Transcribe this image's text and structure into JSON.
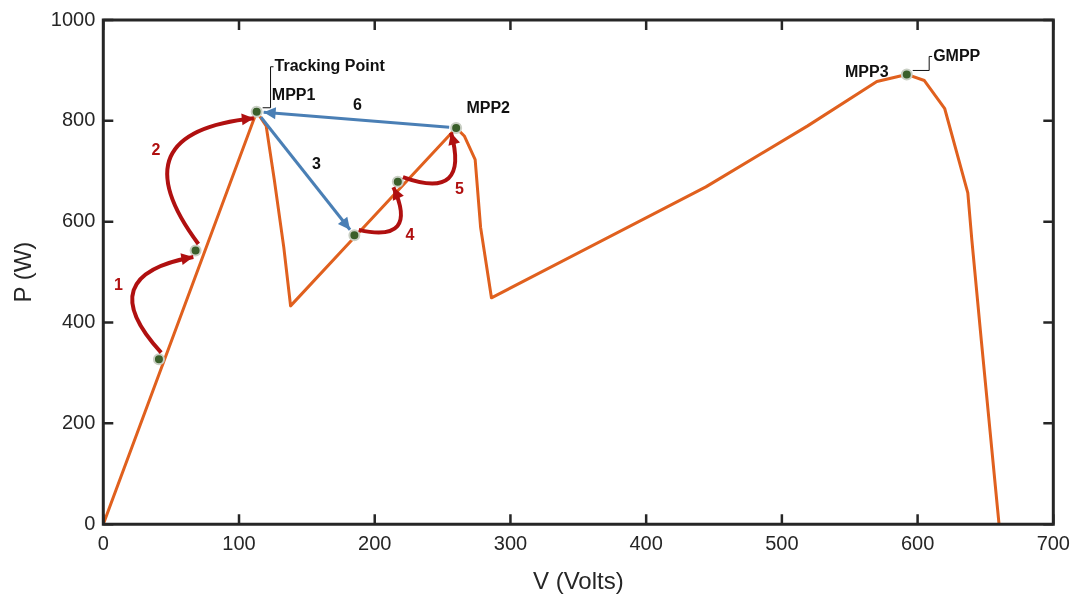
{
  "chart_data": {
    "type": "line",
    "xlabel": "V (Volts)",
    "ylabel": "P (W)",
    "xlim": [
      0,
      700
    ],
    "xticks": [
      0,
      100,
      200,
      300,
      400,
      500,
      600,
      700
    ],
    "ylim": [
      0,
      1000
    ],
    "yticks": [
      0,
      200,
      400,
      600,
      800,
      1000
    ],
    "grid": false,
    "legend": false,
    "marker": "none",
    "line_style": "solid",
    "series": [
      {
        "type": "line",
        "color": "#e0601e",
        "x": [
          0,
          113,
          120,
          126,
          133,
          138,
          260,
          266,
          274,
          278,
          286,
          444,
          519,
          570,
          592,
          605,
          620,
          637,
          640,
          647,
          660
        ],
        "values": [
          0,
          818,
          790,
          683,
          549,
          433,
          786,
          770,
          723,
          589,
          449,
          669,
          790,
          878,
          892,
          880,
          824,
          657,
          563,
          363,
          0
        ]
      },
      {
        "type": "scatter",
        "color": "#3a5f2a",
        "marker": "circle",
        "x": [
          41,
          68,
          113,
          185,
          217,
          260,
          592
        ],
        "values": [
          327,
          543,
          818,
          573,
          679,
          786,
          892
        ]
      }
    ],
    "annotations": [
      {
        "text": "Tracking Point",
        "x": 113,
        "y": 818
      },
      {
        "text": "MPP1",
        "x": 113,
        "y": 818
      },
      {
        "text": "MPP2",
        "x": 260,
        "y": 786
      },
      {
        "text": "MPP3",
        "x": 592,
        "y": 892
      },
      {
        "text": "GMPP",
        "x": 592,
        "y": 892
      },
      "1",
      "2",
      "3",
      "4",
      "5",
      "6"
    ]
  }
}
